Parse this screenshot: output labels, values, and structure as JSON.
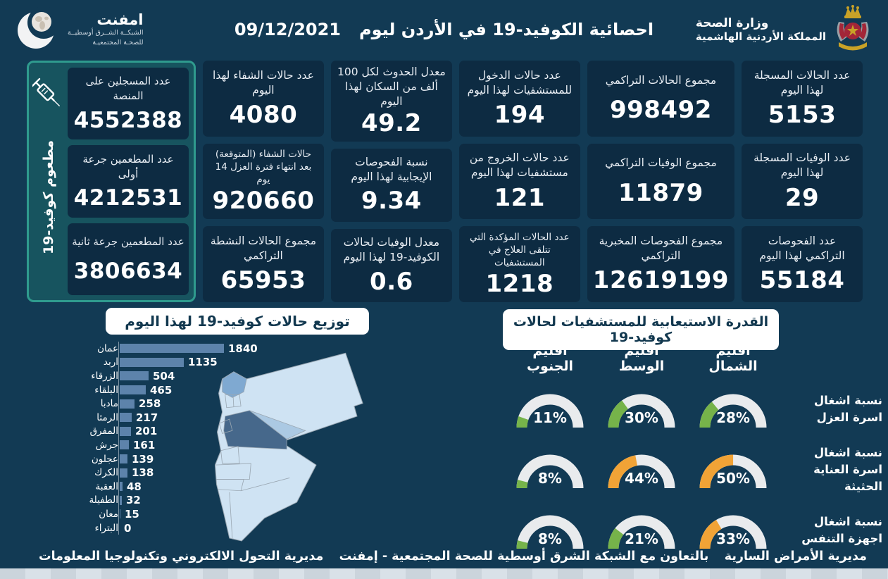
{
  "header": {
    "title": "احصائية الكوفيد-19 في الأردن ليوم",
    "date": "09/12/2021",
    "logo": {
      "name": "امفنت",
      "sub1": "الشبكــة الشــرق أوسطيــة",
      "sub2": "للصحـة المجتمعيـة"
    },
    "ministry": {
      "line1": "وزارة الصحة",
      "line2": "المملكة الأردنية الهاشمية"
    }
  },
  "vaccine_panel": {
    "side_label": "مطعوم كوفيد-19",
    "cards": [
      {
        "label": "عدد المسجلين على المنصة",
        "value": "4552388"
      },
      {
        "label": "عدد المطعمين جرعة أولى",
        "value": "4212531"
      },
      {
        "label": "عدد المطعمين جرعة ثانية",
        "value": "3806634"
      }
    ]
  },
  "stat_columns": [
    {
      "cards": [
        {
          "label": "عدد الحالات المسجلة لهذا اليوم",
          "value": "5153"
        },
        {
          "label": "عدد الوفيات المسجلة لهذا اليوم",
          "value": "29"
        },
        {
          "label": "عدد الفحوصات التراكمي لهذا اليوم",
          "value": "55184"
        }
      ]
    },
    {
      "cards": [
        {
          "label": "مجموع الحالات التراكمي",
          "value": "998492"
        },
        {
          "label": "مجموع الوفيات التراكمي",
          "value": "11879"
        },
        {
          "label": "مجموع الفحوصات المخبرية التراكمي",
          "value": "12619199"
        }
      ]
    },
    {
      "cards": [
        {
          "label": "عدد حالات الدخول للمستشفيات لهذا اليوم",
          "value": "194"
        },
        {
          "label": "عدد حالات الخروج من مستشفيات لهذا اليوم",
          "value": "121"
        },
        {
          "label": "عدد الحالات المؤكدة التي تتلقى العلاج في المستشفيات",
          "value": "1218"
        }
      ]
    },
    {
      "cards": [
        {
          "label": "معدل الحدوث لكل 100 ألف من السكان لهذا اليوم",
          "value": "49.2"
        },
        {
          "label": "نسبة الفحوصات الإيجابية لهذا اليوم",
          "value": "9.34"
        },
        {
          "label": "معدل الوفيات لحالات الكوفيد-19 لهذا اليوم",
          "value": "0.6"
        }
      ]
    },
    {
      "cards": [
        {
          "label": "عدد حالات الشفاء لهذا اليوم",
          "value": "4080"
        },
        {
          "label": "حالات الشفاء (المتوقعة) بعد انتهاء فترة العزل 14 يوم",
          "value": "920660"
        },
        {
          "label": "مجموع الحالات النشطة التراكمي",
          "value": "65953"
        }
      ]
    }
  ],
  "chart_data": [
    {
      "type": "bar",
      "title": "توزيع حالات كوفيد-19 لهذا اليوم",
      "categories": [
        "عمان",
        "اربد",
        "الزرقاء",
        "البلقاء",
        "مادبا",
        "الرمثا",
        "المفرق",
        "جرش",
        "عجلون",
        "الكرك",
        "العقبة",
        "الطفيلة",
        "معان",
        "البتراء"
      ],
      "values": [
        1840,
        1135,
        504,
        465,
        258,
        217,
        201,
        161,
        139,
        138,
        48,
        32,
        15,
        0
      ],
      "max_value": 1840,
      "bar_color": "#5d83ab",
      "legend_position": "none",
      "grid": false
    },
    {
      "type": "gauge",
      "title": "القدرة الاستيعابية للمستشفيات لحالات كوفيد-19",
      "columns": [
        "اقليم الشمال",
        "اقليم الوسط",
        "اقليم الجنوب"
      ],
      "rows": [
        {
          "label": "نسبة اشغال اسرة العزل",
          "values": [
            28,
            30,
            11
          ],
          "colors": [
            "green",
            "green",
            "green"
          ]
        },
        {
          "label": "نسبة اشغال اسرة العناية الحثيثة",
          "values": [
            50,
            44,
            8
          ],
          "colors": [
            "orange",
            "orange",
            "green"
          ]
        },
        {
          "label": "نسبة اشغال اجهزة التنفس",
          "values": [
            33,
            21,
            8
          ],
          "colors": [
            "orange",
            "green",
            "green"
          ]
        }
      ],
      "value_range": [
        0,
        100
      ],
      "unit": "%"
    }
  ],
  "footer": {
    "left": "مديرية التحول الالكتروني وتكنولوجيا المعلومات",
    "center": "بالتعاون مع الشبكة الشرق أوسطية للصحة المجتمعية - إمفنت",
    "right": "مديرية الأمراض السارية"
  },
  "colors": {
    "background_navy": "#123a54",
    "card_navy": "#0d2b42",
    "teal_border": "#2f9b8e",
    "teal_panel": "#17545f",
    "bar_blue": "#5d83ab",
    "gauge_green": "#76b34a",
    "gauge_orange": "#f1a336",
    "gauge_track": "#e9ebed",
    "map_light": "#cfe3f3",
    "map_medium": "#7fa9d1",
    "map_zarqa": "#abc9e3",
    "map_amman_dark": "#46688b"
  }
}
